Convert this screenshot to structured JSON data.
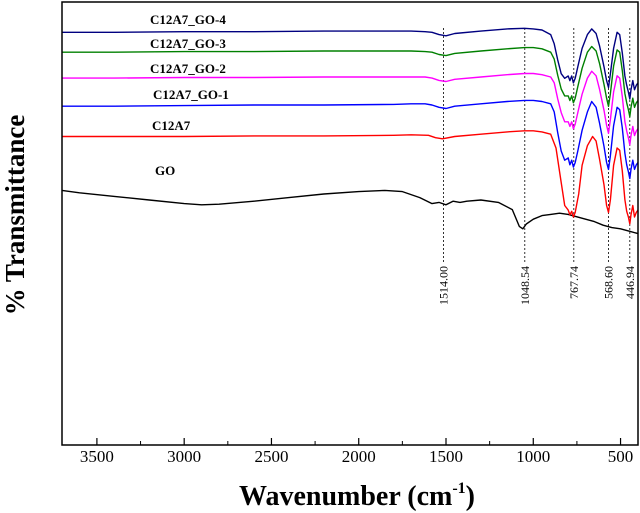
{
  "chart_data": {
    "type": "line",
    "title": "",
    "xlabel": "Wavenumber (cm",
    "xlabel_sup": "-1",
    "xlabel_close": ")",
    "ylabel": "% Transmittance",
    "xlim": [
      3700,
      400
    ],
    "xticks": [
      3500,
      3000,
      2500,
      2000,
      1500,
      1000,
      500
    ],
    "peaks": [
      {
        "x": 1514.0,
        "label": "1514.00"
      },
      {
        "x": 1048.54,
        "label": "1048.54"
      },
      {
        "x": 767.74,
        "label": "767.74"
      },
      {
        "x": 568.6,
        "label": "568.60"
      },
      {
        "x": 446.94,
        "label": "446.94"
      }
    ],
    "series": [
      {
        "name": "GO",
        "label": "GO",
        "color": "#000000",
        "points": [
          [
            3700,
            42
          ],
          [
            3600,
            44
          ],
          [
            3400,
            47
          ],
          [
            3200,
            50
          ],
          [
            3000,
            53
          ],
          [
            2900,
            54
          ],
          [
            2800,
            53.5
          ],
          [
            2600,
            51
          ],
          [
            2400,
            48
          ],
          [
            2200,
            45
          ],
          [
            2000,
            43
          ],
          [
            1850,
            42
          ],
          [
            1750,
            43
          ],
          [
            1650,
            48
          ],
          [
            1580,
            53
          ],
          [
            1540,
            52
          ],
          [
            1500,
            54
          ],
          [
            1460,
            51
          ],
          [
            1420,
            52
          ],
          [
            1380,
            51
          ],
          [
            1300,
            50
          ],
          [
            1200,
            52
          ],
          [
            1120,
            58
          ],
          [
            1080,
            72
          ],
          [
            1060,
            74
          ],
          [
            1040,
            70
          ],
          [
            1000,
            66
          ],
          [
            950,
            63
          ],
          [
            900,
            62
          ],
          [
            850,
            61
          ],
          [
            800,
            62
          ],
          [
            750,
            64
          ],
          [
            700,
            66
          ],
          [
            650,
            68
          ],
          [
            600,
            71
          ],
          [
            550,
            73
          ],
          [
            500,
            74
          ],
          [
            450,
            76
          ],
          [
            400,
            78
          ]
        ]
      },
      {
        "name": "C12A7",
        "label": "C12A7",
        "color": "#ff0000",
        "points": [
          [
            3700,
            30
          ],
          [
            3400,
            30
          ],
          [
            3000,
            30
          ],
          [
            2600,
            29.5
          ],
          [
            2200,
            29.5
          ],
          [
            1800,
            29
          ],
          [
            1700,
            28.5
          ],
          [
            1600,
            29
          ],
          [
            1560,
            31
          ],
          [
            1520,
            32
          ],
          [
            1450,
            30
          ],
          [
            1300,
            28
          ],
          [
            1150,
            26
          ],
          [
            1050,
            25
          ],
          [
            1000,
            25
          ],
          [
            950,
            26
          ],
          [
            900,
            28
          ],
          [
            870,
            40
          ],
          [
            840,
            70
          ],
          [
            820,
            90
          ],
          [
            800,
            94
          ],
          [
            790,
            98
          ],
          [
            780,
            95
          ],
          [
            770,
            100
          ],
          [
            760,
            96
          ],
          [
            740,
            80
          ],
          [
            720,
            55
          ],
          [
            690,
            38
          ],
          [
            660,
            30
          ],
          [
            640,
            34
          ],
          [
            620,
            50
          ],
          [
            595,
            72
          ],
          [
            580,
            90
          ],
          [
            569,
            96
          ],
          [
            558,
            85
          ],
          [
            540,
            55
          ],
          [
            520,
            40
          ],
          [
            505,
            42
          ],
          [
            490,
            60
          ],
          [
            475,
            85
          ],
          [
            465,
            95
          ],
          [
            455,
            100
          ],
          [
            447,
            106
          ],
          [
            440,
            98
          ],
          [
            430,
            90
          ],
          [
            420,
            100
          ],
          [
            410,
            96
          ],
          [
            400,
            94
          ]
        ]
      },
      {
        "name": "C12A7_GO-1",
        "label": "C12A7_GO-1",
        "color": "#0000ff",
        "points": [
          [
            3700,
            21
          ],
          [
            3400,
            21
          ],
          [
            3000,
            20.5
          ],
          [
            2600,
            20
          ],
          [
            2200,
            20
          ],
          [
            1800,
            19.5
          ],
          [
            1700,
            19
          ],
          [
            1620,
            19
          ],
          [
            1580,
            20
          ],
          [
            1540,
            22
          ],
          [
            1500,
            23
          ],
          [
            1450,
            21
          ],
          [
            1300,
            19
          ],
          [
            1150,
            17
          ],
          [
            1050,
            16
          ],
          [
            1000,
            16
          ],
          [
            950,
            17
          ],
          [
            900,
            19
          ],
          [
            880,
            26
          ],
          [
            860,
            44
          ],
          [
            840,
            60
          ],
          [
            820,
            68
          ],
          [
            800,
            66
          ],
          [
            790,
            72
          ],
          [
            780,
            68
          ],
          [
            770,
            74
          ],
          [
            760,
            70
          ],
          [
            745,
            60
          ],
          [
            720,
            42
          ],
          [
            690,
            26
          ],
          [
            665,
            17
          ],
          [
            640,
            22
          ],
          [
            620,
            36
          ],
          [
            595,
            56
          ],
          [
            580,
            70
          ],
          [
            569,
            76
          ],
          [
            558,
            64
          ],
          [
            540,
            38
          ],
          [
            520,
            22
          ],
          [
            505,
            24
          ],
          [
            490,
            40
          ],
          [
            475,
            62
          ],
          [
            465,
            72
          ],
          [
            455,
            78
          ],
          [
            447,
            84
          ],
          [
            440,
            76
          ],
          [
            430,
            68
          ],
          [
            420,
            76
          ],
          [
            410,
            72
          ],
          [
            400,
            70
          ]
        ]
      },
      {
        "name": "C12A7_GO-2",
        "label": "C12A7_GO-2",
        "color": "#ff00ff",
        "points": [
          [
            3700,
            14
          ],
          [
            3400,
            14
          ],
          [
            3000,
            13.5
          ],
          [
            2600,
            13.5
          ],
          [
            2200,
            13
          ],
          [
            1800,
            13
          ],
          [
            1700,
            13
          ],
          [
            1620,
            13
          ],
          [
            1580,
            14
          ],
          [
            1540,
            16
          ],
          [
            1500,
            17
          ],
          [
            1450,
            15
          ],
          [
            1300,
            13
          ],
          [
            1150,
            11
          ],
          [
            1050,
            10
          ],
          [
            1000,
            10
          ],
          [
            950,
            11
          ],
          [
            900,
            13
          ],
          [
            880,
            18
          ],
          [
            860,
            32
          ],
          [
            840,
            44
          ],
          [
            820,
            52
          ],
          [
            800,
            52
          ],
          [
            790,
            56
          ],
          [
            780,
            52
          ],
          [
            770,
            58
          ],
          [
            760,
            54
          ],
          [
            745,
            44
          ],
          [
            720,
            28
          ],
          [
            690,
            14
          ],
          [
            665,
            8
          ],
          [
            640,
            12
          ],
          [
            620,
            24
          ],
          [
            595,
            42
          ],
          [
            580,
            55
          ],
          [
            569,
            62
          ],
          [
            558,
            50
          ],
          [
            540,
            26
          ],
          [
            520,
            12
          ],
          [
            505,
            14
          ],
          [
            490,
            30
          ],
          [
            475,
            52
          ],
          [
            465,
            60
          ],
          [
            455,
            66
          ],
          [
            447,
            72
          ],
          [
            440,
            64
          ],
          [
            430,
            56
          ],
          [
            420,
            64
          ],
          [
            410,
            60
          ],
          [
            400,
            58
          ]
        ]
      },
      {
        "name": "C12A7_GO-3",
        "label": "C12A7_GO-3",
        "color": "#008000",
        "points": [
          [
            3700,
            8
          ],
          [
            3400,
            8
          ],
          [
            3000,
            7.5
          ],
          [
            2600,
            7.5
          ],
          [
            2200,
            7
          ],
          [
            1800,
            7
          ],
          [
            1700,
            7
          ],
          [
            1620,
            7.5
          ],
          [
            1580,
            8
          ],
          [
            1540,
            10
          ],
          [
            1500,
            11
          ],
          [
            1450,
            9
          ],
          [
            1300,
            7
          ],
          [
            1150,
            5
          ],
          [
            1050,
            4
          ],
          [
            1000,
            4
          ],
          [
            950,
            5
          ],
          [
            900,
            8
          ],
          [
            880,
            14
          ],
          [
            860,
            28
          ],
          [
            840,
            40
          ],
          [
            820,
            46
          ],
          [
            800,
            46
          ],
          [
            790,
            50
          ],
          [
            780,
            46
          ],
          [
            770,
            52
          ],
          [
            760,
            48
          ],
          [
            745,
            38
          ],
          [
            720,
            22
          ],
          [
            690,
            8
          ],
          [
            665,
            3
          ],
          [
            640,
            7
          ],
          [
            620,
            18
          ],
          [
            595,
            36
          ],
          [
            580,
            48
          ],
          [
            569,
            55
          ],
          [
            558,
            44
          ],
          [
            540,
            20
          ],
          [
            520,
            6
          ],
          [
            505,
            8
          ],
          [
            490,
            24
          ],
          [
            475,
            44
          ],
          [
            465,
            52
          ],
          [
            455,
            58
          ],
          [
            447,
            64
          ],
          [
            440,
            56
          ],
          [
            430,
            48
          ],
          [
            420,
            56
          ],
          [
            410,
            52
          ],
          [
            400,
            50
          ]
        ]
      },
      {
        "name": "C12A7_GO-4",
        "label": "C12A7_GO-4",
        "color": "#000080",
        "points": [
          [
            3700,
            2
          ],
          [
            3400,
            2
          ],
          [
            3000,
            1.5
          ],
          [
            2600,
            1.5
          ],
          [
            2200,
            1
          ],
          [
            1800,
            1
          ],
          [
            1700,
            1
          ],
          [
            1620,
            1.5
          ],
          [
            1580,
            2
          ],
          [
            1540,
            4
          ],
          [
            1500,
            5
          ],
          [
            1450,
            3
          ],
          [
            1300,
            1
          ],
          [
            1150,
            -1
          ],
          [
            1050,
            -1.5
          ],
          [
            1000,
            -1
          ],
          [
            950,
            0
          ],
          [
            900,
            4
          ],
          [
            880,
            12
          ],
          [
            860,
            26
          ],
          [
            840,
            38
          ],
          [
            820,
            42
          ],
          [
            800,
            40
          ],
          [
            790,
            44
          ],
          [
            780,
            40
          ],
          [
            770,
            46
          ],
          [
            760,
            42
          ],
          [
            745,
            32
          ],
          [
            720,
            16
          ],
          [
            690,
            4
          ],
          [
            665,
            -1
          ],
          [
            640,
            3
          ],
          [
            620,
            14
          ],
          [
            595,
            32
          ],
          [
            580,
            44
          ],
          [
            569,
            50
          ],
          [
            558,
            38
          ],
          [
            540,
            16
          ],
          [
            520,
            2
          ],
          [
            505,
            4
          ],
          [
            490,
            20
          ],
          [
            475,
            40
          ],
          [
            465,
            48
          ],
          [
            455,
            54
          ],
          [
            447,
            60
          ],
          [
            440,
            52
          ],
          [
            430,
            44
          ],
          [
            420,
            52
          ],
          [
            410,
            48
          ],
          [
            400,
            46
          ]
        ]
      }
    ]
  }
}
